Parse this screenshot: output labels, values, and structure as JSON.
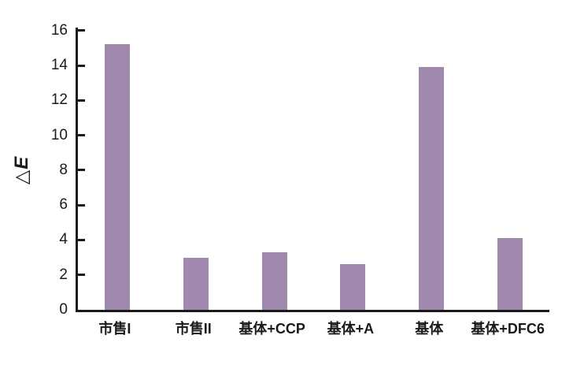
{
  "chart_data": {
    "type": "bar",
    "title": "",
    "categories": [
      "市售I",
      "市售II",
      "基体+CCP",
      "基体+A",
      "基体",
      "基体+DFC6"
    ],
    "values": [
      15.2,
      3.0,
      3.3,
      2.6,
      13.9,
      4.1
    ],
    "xlabel": "",
    "ylabel": "△E",
    "ylim": [
      0,
      16
    ],
    "y_ticks": [
      0,
      2,
      4,
      6,
      8,
      10,
      12,
      14,
      16
    ],
    "grid": false,
    "legend": null,
    "bar_color": "#9f8aad",
    "axis_color": "#1a1a1a",
    "background_color": "#ffffff"
  }
}
